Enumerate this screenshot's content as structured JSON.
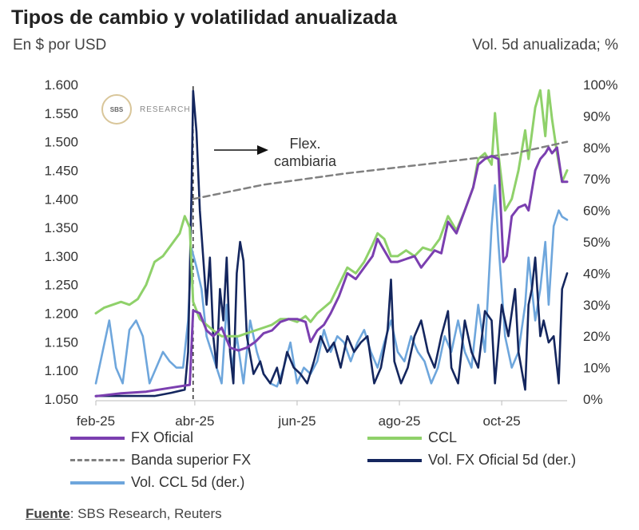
{
  "title": "Tipos de cambio y volatilidad anualizada",
  "subtitle_left": "En $ por USD",
  "subtitle_right": "Vol. 5d anualizada; %",
  "logo": {
    "mark": "SBS",
    "text": "RESEARCH"
  },
  "source": {
    "label": "Fuente",
    "text": ": SBS Research, Reuters"
  },
  "colors": {
    "fx": "#7b3fb0",
    "ccl": "#8fd16a",
    "banda": "#808080",
    "volfx": "#14265e",
    "volccl": "#6ea6dc"
  },
  "chart_data": {
    "type": "line",
    "annotation": "Flex.\ncambiaria",
    "x_ticks": [
      "feb-25",
      "abr-25",
      "jun-25",
      "ago-25",
      "oct-25"
    ],
    "y_left": {
      "range": [
        1050,
        1600
      ],
      "ticks": [
        "1.050",
        "1.100",
        "1.150",
        "1.200",
        "1.250",
        "1.300",
        "1.350",
        "1.400",
        "1.450",
        "1.500",
        "1.550",
        "1.600"
      ]
    },
    "y_right": {
      "range": [
        0,
        100
      ],
      "ticks": [
        "0%",
        "10%",
        "20%",
        "30%",
        "40%",
        "50%",
        "60%",
        "70%",
        "80%",
        "90%",
        "100%"
      ]
    },
    "legend": [
      "FX Oficial",
      "CCL",
      "Banda superior FX",
      "Vol. FX Oficial 5d (der.)",
      "Vol. CCL 5d (der.)"
    ],
    "series": [
      {
        "name": "FX Oficial",
        "axis": "left",
        "points": [
          [
            0,
            1055
          ],
          [
            15,
            1060
          ],
          [
            30,
            1063
          ],
          [
            45,
            1070
          ],
          [
            56,
            1075
          ],
          [
            58,
            1205
          ],
          [
            62,
            1200
          ],
          [
            66,
            1170
          ],
          [
            70,
            1160
          ],
          [
            75,
            1175
          ],
          [
            80,
            1140
          ],
          [
            85,
            1135
          ],
          [
            90,
            1140
          ],
          [
            95,
            1150
          ],
          [
            100,
            1165
          ],
          [
            105,
            1170
          ],
          [
            110,
            1185
          ],
          [
            115,
            1190
          ],
          [
            120,
            1190
          ],
          [
            125,
            1185
          ],
          [
            128,
            1150
          ],
          [
            132,
            1170
          ],
          [
            136,
            1180
          ],
          [
            140,
            1200
          ],
          [
            145,
            1230
          ],
          [
            150,
            1270
          ],
          [
            155,
            1260
          ],
          [
            160,
            1280
          ],
          [
            165,
            1300
          ],
          [
            168,
            1330
          ],
          [
            172,
            1310
          ],
          [
            176,
            1290
          ],
          [
            180,
            1290
          ],
          [
            185,
            1295
          ],
          [
            190,
            1300
          ],
          [
            194,
            1280
          ],
          [
            198,
            1295
          ],
          [
            202,
            1310
          ],
          [
            206,
            1305
          ],
          [
            210,
            1360
          ],
          [
            215,
            1340
          ],
          [
            220,
            1380
          ],
          [
            225,
            1420
          ],
          [
            228,
            1460
          ],
          [
            232,
            1470
          ],
          [
            236,
            1475
          ],
          [
            240,
            1470
          ],
          [
            243,
            1290
          ],
          [
            245,
            1300
          ],
          [
            248,
            1370
          ],
          [
            252,
            1385
          ],
          [
            256,
            1390
          ],
          [
            258,
            1380
          ],
          [
            262,
            1450
          ],
          [
            265,
            1470
          ],
          [
            268,
            1480
          ],
          [
            270,
            1490
          ],
          [
            272,
            1480
          ],
          [
            275,
            1490
          ],
          [
            278,
            1430
          ],
          [
            281,
            1430
          ]
        ]
      },
      {
        "name": "CCL",
        "axis": "left",
        "points": [
          [
            0,
            1200
          ],
          [
            5,
            1210
          ],
          [
            10,
            1215
          ],
          [
            15,
            1220
          ],
          [
            20,
            1215
          ],
          [
            25,
            1225
          ],
          [
            30,
            1250
          ],
          [
            35,
            1290
          ],
          [
            40,
            1300
          ],
          [
            45,
            1320
          ],
          [
            50,
            1340
          ],
          [
            53,
            1370
          ],
          [
            56,
            1350
          ],
          [
            58,
            1220
          ],
          [
            62,
            1190
          ],
          [
            66,
            1180
          ],
          [
            70,
            1170
          ],
          [
            75,
            1160
          ],
          [
            80,
            1160
          ],
          [
            85,
            1160
          ],
          [
            90,
            1165
          ],
          [
            95,
            1170
          ],
          [
            100,
            1175
          ],
          [
            105,
            1180
          ],
          [
            110,
            1190
          ],
          [
            115,
            1190
          ],
          [
            120,
            1185
          ],
          [
            125,
            1195
          ],
          [
            128,
            1185
          ],
          [
            132,
            1200
          ],
          [
            136,
            1210
          ],
          [
            140,
            1220
          ],
          [
            145,
            1250
          ],
          [
            150,
            1280
          ],
          [
            155,
            1270
          ],
          [
            160,
            1290
          ],
          [
            165,
            1320
          ],
          [
            168,
            1340
          ],
          [
            172,
            1330
          ],
          [
            176,
            1300
          ],
          [
            180,
            1300
          ],
          [
            185,
            1310
          ],
          [
            190,
            1300
          ],
          [
            195,
            1315
          ],
          [
            200,
            1310
          ],
          [
            205,
            1330
          ],
          [
            210,
            1370
          ],
          [
            215,
            1345
          ],
          [
            220,
            1380
          ],
          [
            225,
            1420
          ],
          [
            228,
            1470
          ],
          [
            232,
            1480
          ],
          [
            236,
            1460
          ],
          [
            238,
            1550
          ],
          [
            240,
            1480
          ],
          [
            244,
            1380
          ],
          [
            248,
            1400
          ],
          [
            252,
            1450
          ],
          [
            256,
            1520
          ],
          [
            258,
            1470
          ],
          [
            262,
            1560
          ],
          [
            265,
            1590
          ],
          [
            268,
            1510
          ],
          [
            270,
            1590
          ],
          [
            272,
            1540
          ],
          [
            275,
            1480
          ],
          [
            278,
            1430
          ],
          [
            281,
            1450
          ]
        ]
      },
      {
        "name": "Banda superior FX",
        "axis": "left",
        "points": [
          [
            58,
            1400
          ],
          [
            100,
            1425
          ],
          [
            150,
            1445
          ],
          [
            200,
            1462
          ],
          [
            250,
            1480
          ],
          [
            281,
            1500
          ]
        ]
      },
      {
        "name": "Vol. FX Oficial 5d (der.)",
        "axis": "right",
        "points": [
          [
            0,
            1
          ],
          [
            20,
            1
          ],
          [
            35,
            1
          ],
          [
            45,
            2
          ],
          [
            53,
            3
          ],
          [
            55,
            15
          ],
          [
            56,
            40
          ],
          [
            57,
            65
          ],
          [
            58,
            98
          ],
          [
            60,
            85
          ],
          [
            62,
            60
          ],
          [
            64,
            45
          ],
          [
            66,
            30
          ],
          [
            68,
            45
          ],
          [
            70,
            20
          ],
          [
            72,
            10
          ],
          [
            74,
            35
          ],
          [
            76,
            25
          ],
          [
            78,
            45
          ],
          [
            80,
            15
          ],
          [
            82,
            5
          ],
          [
            84,
            40
          ],
          [
            86,
            50
          ],
          [
            88,
            44
          ],
          [
            90,
            20
          ],
          [
            94,
            8
          ],
          [
            98,
            12
          ],
          [
            100,
            8
          ],
          [
            104,
            5
          ],
          [
            108,
            10
          ],
          [
            110,
            5
          ],
          [
            114,
            15
          ],
          [
            118,
            10
          ],
          [
            122,
            8
          ],
          [
            126,
            5
          ],
          [
            130,
            12
          ],
          [
            134,
            20
          ],
          [
            138,
            15
          ],
          [
            142,
            18
          ],
          [
            146,
            10
          ],
          [
            150,
            20
          ],
          [
            154,
            15
          ],
          [
            158,
            18
          ],
          [
            162,
            20
          ],
          [
            166,
            5
          ],
          [
            170,
            10
          ],
          [
            174,
            22
          ],
          [
            176,
            38
          ],
          [
            178,
            12
          ],
          [
            182,
            5
          ],
          [
            186,
            10
          ],
          [
            190,
            20
          ],
          [
            194,
            25
          ],
          [
            198,
            15
          ],
          [
            202,
            10
          ],
          [
            206,
            20
          ],
          [
            210,
            28
          ],
          [
            212,
            10
          ],
          [
            216,
            5
          ],
          [
            220,
            25
          ],
          [
            224,
            15
          ],
          [
            228,
            10
          ],
          [
            232,
            28
          ],
          [
            236,
            25
          ],
          [
            238,
            5
          ],
          [
            242,
            30
          ],
          [
            246,
            20
          ],
          [
            250,
            35
          ],
          [
            252,
            15
          ],
          [
            256,
            3
          ],
          [
            258,
            30
          ],
          [
            260,
            35
          ],
          [
            262,
            45
          ],
          [
            265,
            20
          ],
          [
            267,
            25
          ],
          [
            270,
            18
          ],
          [
            273,
            20
          ],
          [
            276,
            5
          ],
          [
            278,
            35
          ],
          [
            281,
            40
          ]
        ]
      },
      {
        "name": "Vol. CCL 5d (der.)",
        "axis": "right",
        "points": [
          [
            0,
            5
          ],
          [
            4,
            15
          ],
          [
            8,
            25
          ],
          [
            12,
            10
          ],
          [
            16,
            5
          ],
          [
            20,
            22
          ],
          [
            24,
            25
          ],
          [
            28,
            20
          ],
          [
            32,
            5
          ],
          [
            36,
            10
          ],
          [
            40,
            15
          ],
          [
            44,
            12
          ],
          [
            48,
            10
          ],
          [
            52,
            10
          ],
          [
            55,
            25
          ],
          [
            57,
            48
          ],
          [
            60,
            42
          ],
          [
            63,
            35
          ],
          [
            66,
            20
          ],
          [
            69,
            15
          ],
          [
            72,
            10
          ],
          [
            75,
            5
          ],
          [
            78,
            30
          ],
          [
            81,
            10
          ],
          [
            84,
            20
          ],
          [
            88,
            5
          ],
          [
            92,
            25
          ],
          [
            96,
            15
          ],
          [
            100,
            8
          ],
          [
            104,
            5
          ],
          [
            108,
            4
          ],
          [
            112,
            10
          ],
          [
            116,
            18
          ],
          [
            120,
            5
          ],
          [
            124,
            10
          ],
          [
            128,
            8
          ],
          [
            132,
            12
          ],
          [
            136,
            22
          ],
          [
            140,
            15
          ],
          [
            144,
            20
          ],
          [
            148,
            18
          ],
          [
            152,
            12
          ],
          [
            156,
            18
          ],
          [
            160,
            22
          ],
          [
            164,
            15
          ],
          [
            168,
            10
          ],
          [
            172,
            18
          ],
          [
            176,
            25
          ],
          [
            180,
            15
          ],
          [
            184,
            12
          ],
          [
            188,
            20
          ],
          [
            192,
            15
          ],
          [
            196,
            12
          ],
          [
            200,
            5
          ],
          [
            204,
            10
          ],
          [
            208,
            20
          ],
          [
            212,
            15
          ],
          [
            216,
            25
          ],
          [
            220,
            15
          ],
          [
            224,
            10
          ],
          [
            228,
            30
          ],
          [
            232,
            15
          ],
          [
            236,
            55
          ],
          [
            238,
            68
          ],
          [
            240,
            50
          ],
          [
            244,
            20
          ],
          [
            248,
            10
          ],
          [
            252,
            15
          ],
          [
            256,
            30
          ],
          [
            258,
            45
          ],
          [
            262,
            25
          ],
          [
            265,
            35
          ],
          [
            268,
            50
          ],
          [
            270,
            30
          ],
          [
            273,
            55
          ],
          [
            276,
            60
          ],
          [
            278,
            58
          ],
          [
            281,
            57
          ]
        ]
      }
    ]
  }
}
